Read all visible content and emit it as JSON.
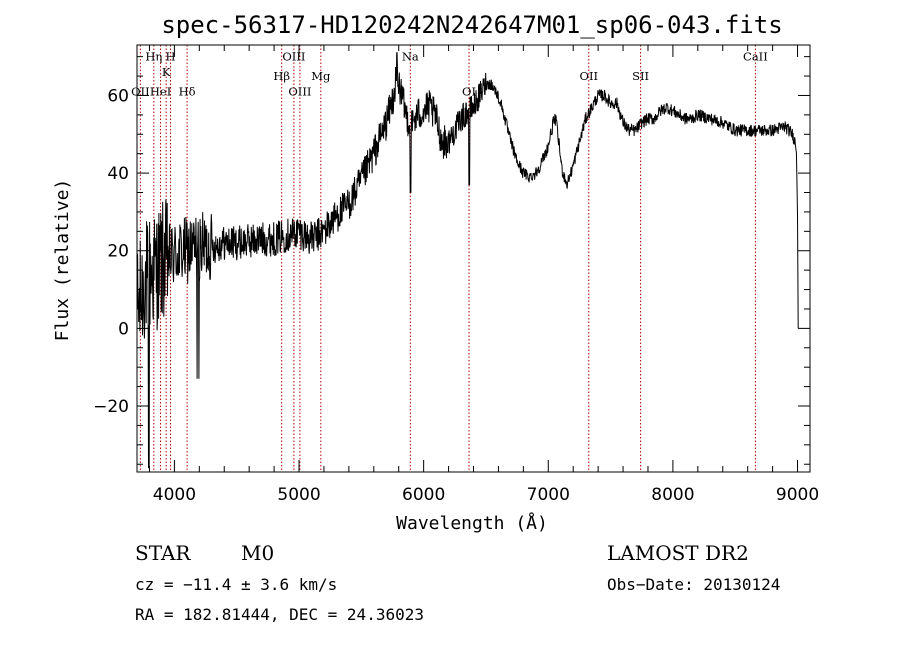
{
  "chart_data": {
    "type": "line",
    "title": "spec-56317-HD120242N242647M01_sp06-043.fits",
    "xlabel": "Wavelength (Å)",
    "ylabel": "Flux (relative)",
    "xlim": [
      3700,
      9100
    ],
    "ylim": [
      -37,
      73
    ],
    "x_ticks": [
      4000,
      5000,
      6000,
      7000,
      8000,
      9000
    ],
    "x_tick_labels": [
      "4000",
      "5000",
      "6000",
      "7000",
      "8000",
      "9000"
    ],
    "y_ticks": [
      -20,
      0,
      20,
      40,
      60
    ],
    "y_tick_labels": [
      "−20",
      "0",
      "20",
      "40",
      "60"
    ],
    "spectrum_color": "#000000",
    "line_marker_color": "#b00000",
    "spectral_lines": [
      {
        "label": "OII",
        "wavelength": 3727,
        "label_flux": 60
      },
      {
        "label": "Hη",
        "wavelength": 3835,
        "label_flux": 69
      },
      {
        "label": "HeI",
        "wavelength": 3889,
        "label_flux": 60
      },
      {
        "label": "K",
        "wavelength": 3934,
        "label_flux": 65
      },
      {
        "label": "H",
        "wavelength": 3969,
        "label_flux": 69
      },
      {
        "label": "Hδ",
        "wavelength": 4102,
        "label_flux": 60
      },
      {
        "label": "Hβ",
        "wavelength": 4861,
        "label_flux": 64
      },
      {
        "label": "OIII",
        "wavelength": 4959,
        "label_flux": 69
      },
      {
        "label": "OIII",
        "wavelength": 5007,
        "label_flux": 60
      },
      {
        "label": "Mg",
        "wavelength": 5175,
        "label_flux": 64
      },
      {
        "label": "Na",
        "wavelength": 5893,
        "label_flux": 69
      },
      {
        "label": "OI",
        "wavelength": 6364,
        "label_flux": 60
      },
      {
        "label": "OII",
        "wavelength": 7325,
        "label_flux": 64
      },
      {
        "label": "SII",
        "wavelength": 7741,
        "label_flux": 64
      },
      {
        "label": "CaII",
        "wavelength": 8662,
        "label_flux": 69
      }
    ],
    "continuum": [
      [
        3710,
        5
      ],
      [
        3760,
        12
      ],
      [
        3800,
        14
      ],
      [
        3850,
        15
      ],
      [
        3900,
        17
      ],
      [
        3950,
        18
      ],
      [
        4000,
        19
      ],
      [
        4100,
        20
      ],
      [
        4200,
        21
      ],
      [
        4300,
        21
      ],
      [
        4400,
        22
      ],
      [
        4500,
        22
      ],
      [
        4600,
        22.5
      ],
      [
        4700,
        23
      ],
      [
        4800,
        23
      ],
      [
        4900,
        24
      ],
      [
        5000,
        25
      ],
      [
        5100,
        23
      ],
      [
        5200,
        25
      ],
      [
        5300,
        29
      ],
      [
        5400,
        32
      ],
      [
        5500,
        38
      ],
      [
        5600,
        45
      ],
      [
        5700,
        53
      ],
      [
        5760,
        60
      ],
      [
        5790,
        66
      ],
      [
        5820,
        60
      ],
      [
        5860,
        55
      ],
      [
        5900,
        52
      ],
      [
        5950,
        55
      ],
      [
        6000,
        56
      ],
      [
        6050,
        57
      ],
      [
        6100,
        54
      ],
      [
        6150,
        48
      ],
      [
        6200,
        48
      ],
      [
        6250,
        51
      ],
      [
        6300,
        54
      ],
      [
        6360,
        56
      ],
      [
        6400,
        57
      ],
      [
        6450,
        60
      ],
      [
        6500,
        63
      ],
      [
        6540,
        63
      ],
      [
        6580,
        61
      ],
      [
        6620,
        58
      ],
      [
        6660,
        53
      ],
      [
        6700,
        48
      ],
      [
        6750,
        43
      ],
      [
        6800,
        40
      ],
      [
        6850,
        39
      ],
      [
        6900,
        40
      ],
      [
        6950,
        43
      ],
      [
        7000,
        47
      ],
      [
        7040,
        53
      ],
      [
        7060,
        54
      ],
      [
        7080,
        49
      ],
      [
        7110,
        41
      ],
      [
        7150,
        37
      ],
      [
        7200,
        42
      ],
      [
        7250,
        48
      ],
      [
        7300,
        54
      ],
      [
        7350,
        57
      ],
      [
        7400,
        60
      ],
      [
        7450,
        60
      ],
      [
        7500,
        58
      ],
      [
        7550,
        58
      ],
      [
        7600,
        53
      ],
      [
        7650,
        51
      ],
      [
        7700,
        51
      ],
      [
        7750,
        53
      ],
      [
        7800,
        54
      ],
      [
        7850,
        54
      ],
      [
        7900,
        56
      ],
      [
        7950,
        57
      ],
      [
        8000,
        56
      ],
      [
        8050,
        55
      ],
      [
        8100,
        54
      ],
      [
        8150,
        54
      ],
      [
        8200,
        55
      ],
      [
        8300,
        54
      ],
      [
        8400,
        53
      ],
      [
        8500,
        51
      ],
      [
        8600,
        51
      ],
      [
        8700,
        51
      ],
      [
        8800,
        51
      ],
      [
        8900,
        52
      ],
      [
        8960,
        50
      ],
      [
        8990,
        47
      ],
      [
        9000,
        30
      ],
      [
        9005,
        0
      ]
    ]
  },
  "info": {
    "object_class": "STAR",
    "subclass": "M0",
    "survey": "LAMOST DR2",
    "redshift": "cz = −11.4 ± 3.6 km/s",
    "obs_date": "Obs−Date: 20130124",
    "coords": "RA = 182.81444, DEC =  24.36023"
  }
}
